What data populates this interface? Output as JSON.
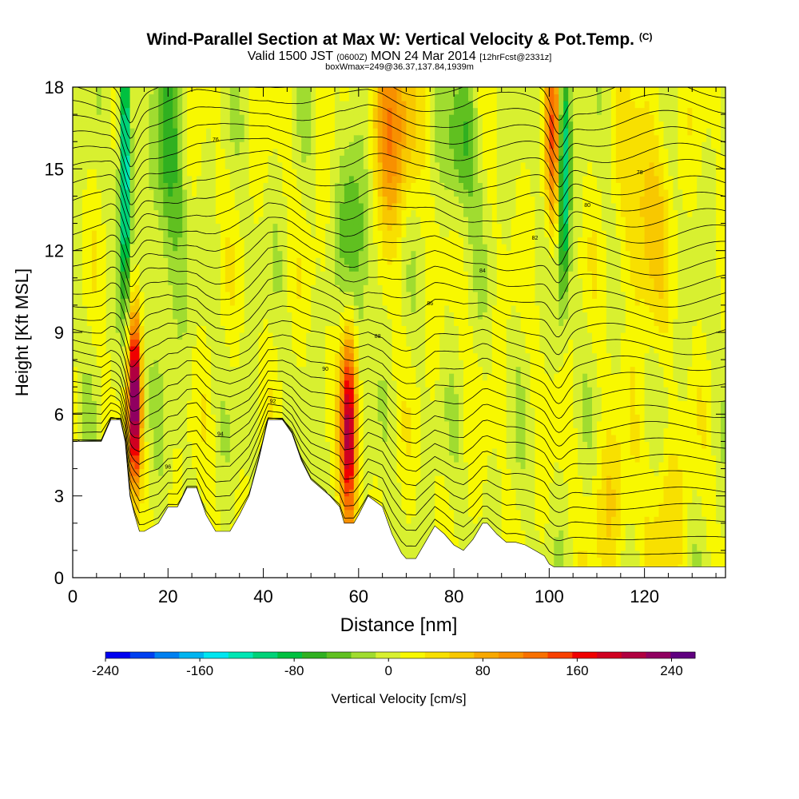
{
  "header": {
    "title": "Wind-Parallel Section at Max W: Vertical Velocity & Pot.Temp.",
    "copyright": "(C)",
    "valid_main": "Valid 1500 JST",
    "valid_utc": "(0600Z)",
    "valid_date": "MON 24 Mar 2014",
    "forecast": "[12hrFcst@2331z]",
    "boxmax": "boxWmax=249@36.37,137.84,1939m"
  },
  "chart_data": {
    "type": "heatmap",
    "xlabel": "Distance [nm]",
    "ylabel": "Height [Kft MSL]",
    "xlim": [
      0,
      137
    ],
    "ylim": [
      0,
      18
    ],
    "xticks": [
      0,
      20,
      40,
      60,
      80,
      100,
      120
    ],
    "yticks": [
      0,
      3,
      6,
      9,
      12,
      15,
      18
    ],
    "colorbar": {
      "label": "Vertical Velocity [cm/s]",
      "range": [
        -240,
        260
      ],
      "ticks": [
        -240,
        -160,
        -80,
        0,
        80,
        160,
        240
      ],
      "colors": [
        "#0000f0",
        "#0040f0",
        "#0080f0",
        "#00b4f0",
        "#00e6f0",
        "#00e6b4",
        "#00d278",
        "#00c040",
        "#30b020",
        "#60c020",
        "#a0dc30",
        "#d8f030",
        "#f8f800",
        "#f8e000",
        "#f8c800",
        "#f8a800",
        "#f89000",
        "#f87000",
        "#f84000",
        "#f00000",
        "#d00020",
        "#b00040",
        "#900060",
        "#600080"
      ]
    },
    "terrain_kft": [
      [
        0,
        5.0
      ],
      [
        6,
        5.0
      ],
      [
        8,
        5.8
      ],
      [
        10,
        5.8
      ],
      [
        11,
        5.0
      ],
      [
        12,
        3.0
      ],
      [
        13,
        2.3
      ],
      [
        14,
        1.7
      ],
      [
        15,
        1.7
      ],
      [
        18,
        2.0
      ],
      [
        20,
        2.6
      ],
      [
        22,
        2.6
      ],
      [
        24,
        3.3
      ],
      [
        26,
        3.3
      ],
      [
        28,
        2.3
      ],
      [
        30,
        1.7
      ],
      [
        33,
        1.7
      ],
      [
        35,
        2.3
      ],
      [
        37,
        3.0
      ],
      [
        39,
        4.3
      ],
      [
        41,
        5.8
      ],
      [
        44,
        5.8
      ],
      [
        46,
        5.3
      ],
      [
        48,
        4.3
      ],
      [
        50,
        3.6
      ],
      [
        52,
        3.3
      ],
      [
        54,
        3.0
      ],
      [
        56,
        2.6
      ],
      [
        57,
        2.0
      ],
      [
        59,
        2.0
      ],
      [
        60,
        2.3
      ],
      [
        62,
        3.0
      ],
      [
        65,
        2.6
      ],
      [
        67,
        1.6
      ],
      [
        69,
        0.9
      ],
      [
        70,
        0.7
      ],
      [
        72,
        0.7
      ],
      [
        74,
        1.3
      ],
      [
        76,
        1.9
      ],
      [
        78,
        1.6
      ],
      [
        80,
        1.2
      ],
      [
        82,
        1.0
      ],
      [
        84,
        1.4
      ],
      [
        86,
        2.0
      ],
      [
        87,
        2.0
      ],
      [
        89,
        1.6
      ],
      [
        91,
        1.3
      ],
      [
        93,
        1.3
      ],
      [
        95,
        1.2
      ],
      [
        97,
        1.0
      ],
      [
        99,
        0.8
      ],
      [
        100,
        0.5
      ],
      [
        101,
        0.4
      ],
      [
        103,
        0.4
      ],
      [
        137,
        0.4
      ]
    ],
    "w_features": [
      {
        "x": 13,
        "y": 6.5,
        "sx": 0.9,
        "sy": 2.2,
        "amp": 240
      },
      {
        "x": 58,
        "y": 5.5,
        "sx": 1.2,
        "sy": 2.8,
        "amp": 200
      },
      {
        "x": 66,
        "y": 16.5,
        "sx": 3.5,
        "sy": 2.5,
        "amp": 110
      },
      {
        "x": 101,
        "y": 16.0,
        "sx": 1.3,
        "sy": 2.5,
        "amp": 120
      },
      {
        "x": 11,
        "y": 15.5,
        "sx": 0.8,
        "sy": 3.5,
        "amp": -170
      },
      {
        "x": 103,
        "y": 15.0,
        "sx": 0.9,
        "sy": 3.0,
        "amp": -160
      },
      {
        "x": 20,
        "y": 15.0,
        "sx": 2.5,
        "sy": 4.0,
        "amp": -60
      },
      {
        "x": 60,
        "y": 13.5,
        "sx": 2.5,
        "sy": 3.5,
        "amp": -70
      },
      {
        "x": 82,
        "y": 16.0,
        "sx": 2.5,
        "sy": 2.0,
        "amp": -60
      },
      {
        "x": 120,
        "y": 13.5,
        "sx": 3.5,
        "sy": 3.0,
        "amp": 55
      },
      {
        "x": 113,
        "y": 2.5,
        "sx": 3.0,
        "sy": 2.0,
        "amp": 40
      },
      {
        "x": 125,
        "y": 2.5,
        "sx": 3.0,
        "sy": 2.0,
        "amp": 35
      }
    ],
    "theta_labels": [
      "96",
      "94",
      "92",
      "90",
      "88",
      "86",
      "84",
      "82",
      "80",
      "78",
      "76"
    ]
  }
}
